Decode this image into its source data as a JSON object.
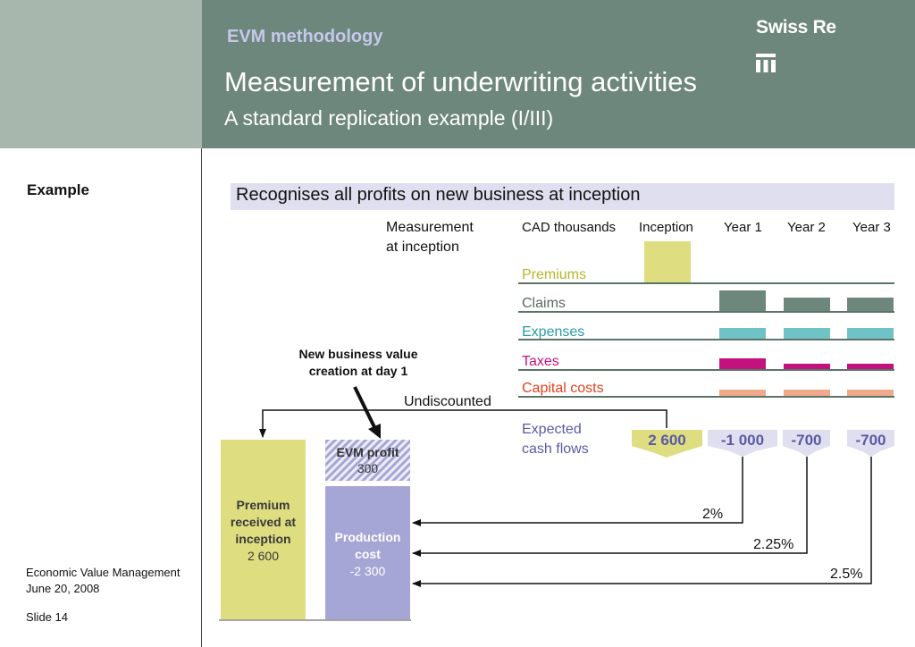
{
  "header": {
    "section": "EVM methodology",
    "title": "Measurement of underwriting activities",
    "subtitle": "A standard replication example (I/III)",
    "brand": "Swiss Re"
  },
  "sidebar": {
    "example_label": "Example",
    "footer_line1": "Economic Value Management",
    "footer_line2": "June 20, 2008",
    "slide": "Slide 14"
  },
  "banner": "Recognises all profits on new business at inception",
  "measurement": {
    "line1": "Measurement",
    "line2": "at inception"
  },
  "table": {
    "unit_label": "CAD thousands",
    "columns": [
      "Inception",
      "Year 1",
      "Year 2",
      "Year 3"
    ],
    "rows": [
      {
        "label": "Premiums",
        "color": "#b7b62a"
      },
      {
        "label": "Claims",
        "color": "#566a60"
      },
      {
        "label": "Expenses",
        "color": "#2a9aa6"
      },
      {
        "label": "Taxes",
        "color": "#c4117e"
      },
      {
        "label": "Capital costs",
        "color": "#e4401e"
      }
    ],
    "expected_cf_label": {
      "line1": "Expected",
      "line2": "cash flows"
    },
    "expected_cf_values": [
      "2 600",
      "-1 000",
      "-700",
      "-700"
    ]
  },
  "annotations": {
    "nbv_line1": "New business value",
    "nbv_line2": "creation at day 1",
    "undiscounted": "Undiscounted",
    "rates": [
      "2%",
      "2.25%",
      "2.5%"
    ]
  },
  "boxes": {
    "premium": {
      "line1": "Premium",
      "line2": "received at",
      "line3": "inception",
      "value": "2 600"
    },
    "evm_profit": {
      "label": "EVM profit",
      "value": "300"
    },
    "production_cost": {
      "line1": "Production",
      "line2": "cost",
      "value": "-2 300"
    }
  },
  "colors": {
    "header_green": "#6e877c",
    "header_left": "#a7b7ae",
    "premium_yellow": "#dedd80",
    "production_purple": "#a6a6d6",
    "expenses_teal": "#6fc3c6",
    "taxes_magenta": "#c4117e",
    "capital_orange": "#f0a98a"
  }
}
